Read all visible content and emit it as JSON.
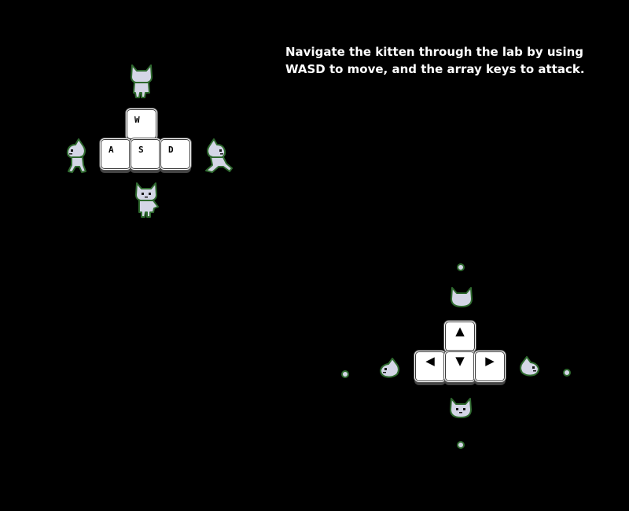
{
  "instructions": {
    "line1": "Navigate the kitten through the lab by using",
    "line2": "WASD to move, and the array keys to attack."
  },
  "move_keys": {
    "w": "W",
    "a": "A",
    "s": "S",
    "d": "D"
  },
  "attack_keys": {
    "up": "▲",
    "left": "◀",
    "down": "▼",
    "right": "▶"
  },
  "colors": {
    "background": "#000000",
    "key_face": "#ffffff",
    "kitten_body": "#d4d6e6",
    "kitten_outline": "#2f6a2f",
    "text": "#ffffff"
  }
}
